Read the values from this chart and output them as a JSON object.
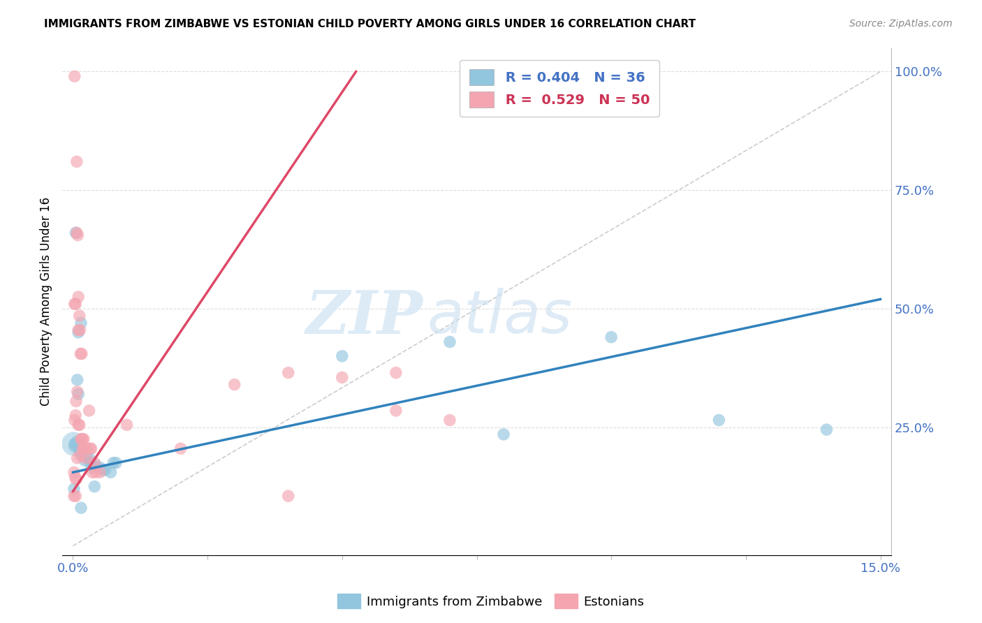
{
  "title": "IMMIGRANTS FROM ZIMBABWE VS ESTONIAN CHILD POVERTY AMONG GIRLS UNDER 16 CORRELATION CHART",
  "source": "Source: ZipAtlas.com",
  "ylabel": "Child Poverty Among Girls Under 16",
  "legend_blue_label": "Immigrants from Zimbabwe",
  "legend_pink_label": "Estonians",
  "r_blue": 0.404,
  "n_blue": 36,
  "r_pink": 0.529,
  "n_pink": 50,
  "blue_color": "#92c5de",
  "pink_color": "#f4a5b0",
  "trend_blue_color": "#3182bd",
  "trend_pink_color": "#de4968",
  "diagonal_color": "#cccccc",
  "watermark_zip": "ZIP",
  "watermark_atlas": "atlas",
  "xlim": [
    0,
    0.15
  ],
  "ylim": [
    0,
    1.0
  ],
  "trend_blue_x0": 0.0,
  "trend_blue_y0": 0.155,
  "trend_blue_x1": 0.15,
  "trend_blue_y1": 0.52,
  "trend_pink_x0": 0.0,
  "trend_pink_y0": 0.115,
  "trend_pink_x1": 0.03,
  "trend_pink_y1": 0.62,
  "blue_scatter": [
    [
      0.0003,
      0.21
    ],
    [
      0.0005,
      0.215
    ],
    [
      0.0008,
      0.22
    ],
    [
      0.001,
      0.215
    ],
    [
      0.0012,
      0.2
    ],
    [
      0.0015,
      0.195
    ],
    [
      0.002,
      0.2
    ],
    [
      0.0022,
      0.18
    ],
    [
      0.0025,
      0.19
    ],
    [
      0.003,
      0.185
    ],
    [
      0.0032,
      0.175
    ],
    [
      0.0035,
      0.165
    ],
    [
      0.004,
      0.165
    ],
    [
      0.0042,
      0.17
    ],
    [
      0.005,
      0.165
    ],
    [
      0.0055,
      0.16
    ],
    [
      0.006,
      0.16
    ],
    [
      0.007,
      0.155
    ],
    [
      0.0075,
      0.175
    ],
    [
      0.008,
      0.175
    ],
    [
      0.0005,
      0.66
    ],
    [
      0.001,
      0.45
    ],
    [
      0.0015,
      0.47
    ],
    [
      0.0008,
      0.35
    ],
    [
      0.001,
      0.32
    ],
    [
      0.0003,
      0.215
    ],
    [
      0.0006,
      0.215
    ],
    [
      0.05,
      0.4
    ],
    [
      0.07,
      0.43
    ],
    [
      0.1,
      0.44
    ],
    [
      0.12,
      0.265
    ],
    [
      0.14,
      0.245
    ],
    [
      0.0002,
      0.12
    ],
    [
      0.004,
      0.125
    ],
    [
      0.0015,
      0.08
    ],
    [
      0.08,
      0.235
    ]
  ],
  "pink_scatter": [
    [
      0.0002,
      0.155
    ],
    [
      0.0004,
      0.145
    ],
    [
      0.0006,
      0.14
    ],
    [
      0.0008,
      0.185
    ],
    [
      0.001,
      0.255
    ],
    [
      0.0012,
      0.255
    ],
    [
      0.0014,
      0.19
    ],
    [
      0.0016,
      0.225
    ],
    [
      0.0018,
      0.205
    ],
    [
      0.002,
      0.225
    ],
    [
      0.0022,
      0.205
    ],
    [
      0.0024,
      0.185
    ],
    [
      0.0026,
      0.205
    ],
    [
      0.003,
      0.285
    ],
    [
      0.0032,
      0.205
    ],
    [
      0.0034,
      0.205
    ],
    [
      0.0036,
      0.155
    ],
    [
      0.004,
      0.175
    ],
    [
      0.0042,
      0.155
    ],
    [
      0.005,
      0.155
    ],
    [
      0.0003,
      0.51
    ],
    [
      0.0005,
      0.51
    ],
    [
      0.0007,
      0.66
    ],
    [
      0.0009,
      0.655
    ],
    [
      0.001,
      0.525
    ],
    [
      0.0012,
      0.485
    ],
    [
      0.0014,
      0.405
    ],
    [
      0.0016,
      0.405
    ],
    [
      0.03,
      0.34
    ],
    [
      0.04,
      0.365
    ],
    [
      0.05,
      0.355
    ],
    [
      0.06,
      0.285
    ],
    [
      0.0002,
      0.105
    ],
    [
      0.0005,
      0.105
    ],
    [
      0.04,
      0.105
    ],
    [
      0.0003,
      0.99
    ],
    [
      0.06,
      0.365
    ],
    [
      0.07,
      0.265
    ],
    [
      0.0003,
      0.265
    ],
    [
      0.0005,
      0.275
    ],
    [
      0.0006,
      0.305
    ],
    [
      0.0008,
      0.325
    ],
    [
      0.01,
      0.255
    ],
    [
      0.02,
      0.205
    ],
    [
      0.0007,
      0.81
    ],
    [
      0.001,
      0.455
    ],
    [
      0.0013,
      0.455
    ],
    [
      0.0015,
      0.225
    ],
    [
      0.0018,
      0.225
    ],
    [
      0.002,
      0.205
    ]
  ]
}
